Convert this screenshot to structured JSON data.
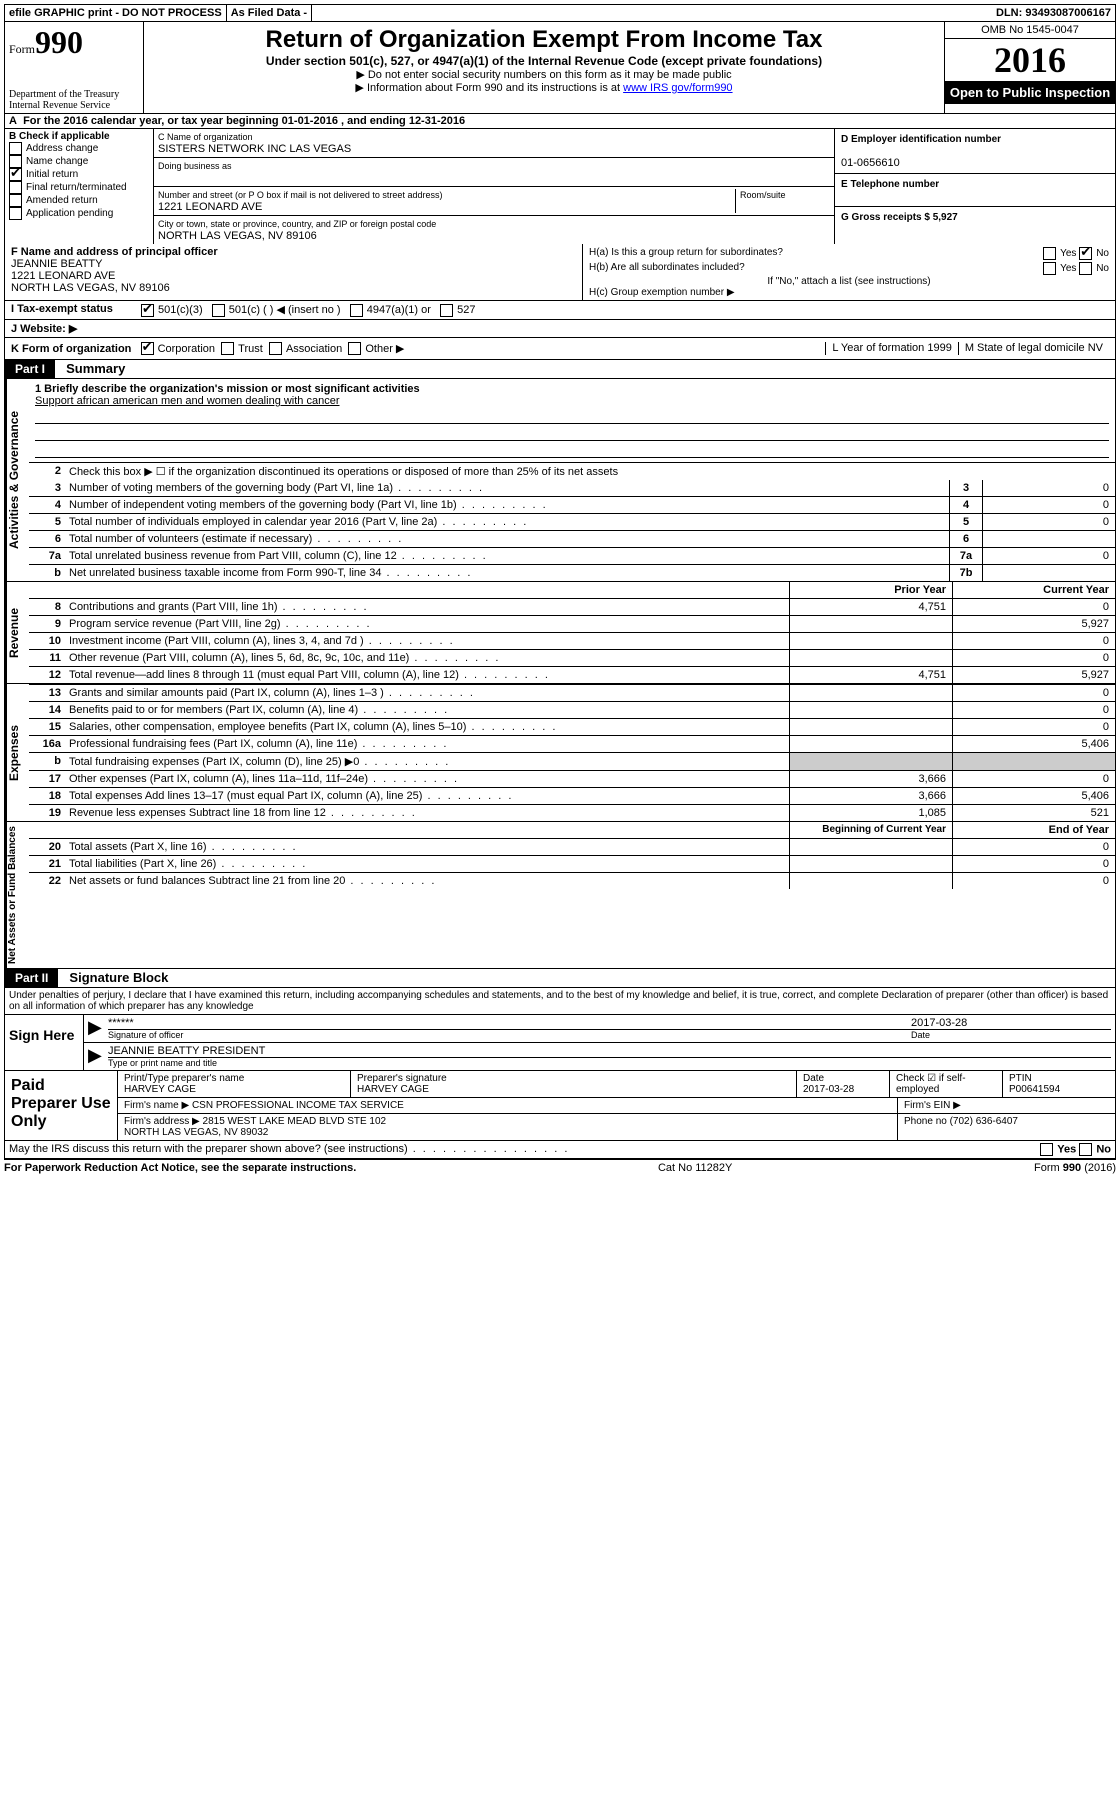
{
  "top": {
    "efile": "efile GRAPHIC print - DO NOT PROCESS",
    "asfiled": "As Filed Data -",
    "dln": "DLN: 93493087006167"
  },
  "header": {
    "form_word": "Form",
    "form_num": "990",
    "dept": "Department of the Treasury\nInternal Revenue Service",
    "title": "Return of Organization Exempt From Income Tax",
    "subtitle": "Under section 501(c), 527, or 4947(a)(1) of the Internal Revenue Code (except private foundations)",
    "instr1": "▶ Do not enter social security numbers on this form as it may be made public",
    "instr2": "▶ Information about Form 990 and its instructions is at ",
    "instr2_link": "www IRS gov/form990",
    "omb": "OMB No 1545-0047",
    "year": "2016",
    "open_pub": "Open to Public Inspection"
  },
  "A": "For the 2016 calendar year, or tax year beginning 01-01-2016   , and ending 12-31-2016",
  "B": {
    "label": "B Check if applicable",
    "items": [
      {
        "t": "Address change",
        "c": false
      },
      {
        "t": "Name change",
        "c": false
      },
      {
        "t": "Initial return",
        "c": true
      },
      {
        "t": "Final return/terminated",
        "c": false
      },
      {
        "t": "Amended return",
        "c": false
      },
      {
        "t": "Application pending",
        "c": false
      }
    ]
  },
  "C": {
    "name_lbl": "C Name of organization",
    "name": "SISTERS NETWORK INC LAS VEGAS",
    "dba_lbl": "Doing business as",
    "dba": "",
    "addr_lbl": "Number and street (or P O  box if mail is not delivered to street address)",
    "room_lbl": "Room/suite",
    "addr": "1221 LEONARD AVE",
    "city_lbl": "City or town, state or province, country, and ZIP or foreign postal code",
    "city": "NORTH LAS VEGAS, NV  89106"
  },
  "D": {
    "lbl": "D Employer identification number",
    "val": "01-0656610"
  },
  "E": {
    "lbl": "E Telephone number",
    "val": ""
  },
  "G": {
    "lbl": "G Gross receipts $ 5,927"
  },
  "F": {
    "lbl": "F  Name and address of principal officer",
    "name": "JEANNIE BEATTY",
    "addr1": "1221 LEONARD AVE",
    "addr2": "NORTH LAS VEGAS, NV  89106"
  },
  "H": {
    "a": "H(a)  Is this a group return for subordinates?",
    "a_yes": false,
    "a_no": true,
    "b": "H(b)  Are all subordinates included?",
    "b_yes": false,
    "b_no": false,
    "note": "If \"No,\" attach a list  (see instructions)",
    "c": "H(c)  Group exemption number ▶"
  },
  "I": {
    "lbl": "I   Tax-exempt status",
    "opts": [
      {
        "t": "501(c)(3)",
        "c": true
      },
      {
        "t": "501(c) (  ) ◀ (insert no )",
        "c": false
      },
      {
        "t": "4947(a)(1) or",
        "c": false
      },
      {
        "t": "527",
        "c": false
      }
    ]
  },
  "J": {
    "lbl": "J   Website: ▶",
    "val": ""
  },
  "K": {
    "lbl": "K Form of organization",
    "opts": [
      {
        "t": "Corporation",
        "c": true
      },
      {
        "t": "Trust",
        "c": false
      },
      {
        "t": "Association",
        "c": false
      },
      {
        "t": "Other ▶",
        "c": false
      }
    ],
    "L_lbl": "L Year of formation  1999",
    "M_lbl": "M State of legal domicile  NV"
  },
  "part1": {
    "hdr": "Part I",
    "title": "Summary",
    "mission_lbl": "1 Briefly describe the organization's mission or most significant activities",
    "mission": "Support african american men and women dealing with cancer",
    "line2": "Check this box ▶ ☐ if the organization discontinued its operations or disposed of more than 25% of its net assets",
    "sideA": "Activities & Governance",
    "sideR": "Revenue",
    "sideE": "Expenses",
    "sideN": "Net Assets or Fund Balances",
    "gov_lines": [
      {
        "n": "3",
        "d": "Number of voting members of the governing body (Part VI, line 1a)",
        "box": "3",
        "v": "0"
      },
      {
        "n": "4",
        "d": "Number of independent voting members of the governing body (Part VI, line 1b)",
        "box": "4",
        "v": "0"
      },
      {
        "n": "5",
        "d": "Total number of individuals employed in calendar year 2016 (Part V, line 2a)",
        "box": "5",
        "v": "0"
      },
      {
        "n": "6",
        "d": "Total number of volunteers (estimate if necessary)",
        "box": "6",
        "v": ""
      },
      {
        "n": "7a",
        "d": "Total unrelated business revenue from Part VIII, column (C), line 12",
        "box": "7a",
        "v": "0"
      },
      {
        "n": "b",
        "d": "Net unrelated business taxable income from Form 990-T, line 34",
        "box": "7b",
        "v": ""
      }
    ],
    "col_py": "Prior Year",
    "col_cy": "Current Year",
    "rev_lines": [
      {
        "n": "8",
        "d": "Contributions and grants (Part VIII, line 1h)",
        "py": "4,751",
        "cy": "0"
      },
      {
        "n": "9",
        "d": "Program service revenue (Part VIII, line 2g)",
        "py": "",
        "cy": "5,927"
      },
      {
        "n": "10",
        "d": "Investment income (Part VIII, column (A), lines 3, 4, and 7d )",
        "py": "",
        "cy": "0"
      },
      {
        "n": "11",
        "d": "Other revenue (Part VIII, column (A), lines 5, 6d, 8c, 9c, 10c, and 11e)",
        "py": "",
        "cy": "0"
      },
      {
        "n": "12",
        "d": "Total revenue—add lines 8 through 11 (must equal Part VIII, column (A), line 12)",
        "py": "4,751",
        "cy": "5,927"
      }
    ],
    "exp_lines": [
      {
        "n": "13",
        "d": "Grants and similar amounts paid (Part IX, column (A), lines 1–3 )",
        "py": "",
        "cy": "0"
      },
      {
        "n": "14",
        "d": "Benefits paid to or for members (Part IX, column (A), line 4)",
        "py": "",
        "cy": "0"
      },
      {
        "n": "15",
        "d": "Salaries, other compensation, employee benefits (Part IX, column (A), lines 5–10)",
        "py": "",
        "cy": "0"
      },
      {
        "n": "16a",
        "d": "Professional fundraising fees (Part IX, column (A), line 11e)",
        "py": "",
        "cy": "5,406"
      },
      {
        "n": "b",
        "d": "Total fundraising expenses (Part IX, column (D), line 25) ▶0",
        "py": "—",
        "cy": "—"
      },
      {
        "n": "17",
        "d": "Other expenses (Part IX, column (A), lines 11a–11d, 11f–24e)",
        "py": "3,666",
        "cy": "0"
      },
      {
        "n": "18",
        "d": "Total expenses  Add lines 13–17 (must equal Part IX, column (A), line 25)",
        "py": "3,666",
        "cy": "5,406"
      },
      {
        "n": "19",
        "d": "Revenue less expenses  Subtract line 18 from line 12",
        "py": "1,085",
        "cy": "521"
      }
    ],
    "col_boc": "Beginning of Current Year",
    "col_eoy": "End of Year",
    "net_lines": [
      {
        "n": "20",
        "d": "Total assets (Part X, line 16)",
        "py": "",
        "cy": "0"
      },
      {
        "n": "21",
        "d": "Total liabilities (Part X, line 26)",
        "py": "",
        "cy": "0"
      },
      {
        "n": "22",
        "d": "Net assets or fund balances  Subtract line 21 from line 20",
        "py": "",
        "cy": "0"
      }
    ]
  },
  "part2": {
    "hdr": "Part II",
    "title": "Signature Block",
    "perjury": "Under penalties of perjury, I declare that I have examined this return, including accompanying schedules and statements, and to the best of my knowledge and belief, it is true, correct, and complete  Declaration of preparer (other than officer) is based on all information of which preparer has any knowledge",
    "sign_here": "Sign Here",
    "stars": "******",
    "sig_officer": "Signature of officer",
    "date_lbl": "Date",
    "date": "2017-03-28",
    "name_title": "JEANNIE BEATTY PRESIDENT",
    "type_lbl": "Type or print name and title",
    "paid_hdr": "Paid Preparer Use Only",
    "prep_name_lbl": "Print/Type preparer's name",
    "prep_name": "HARVEY CAGE",
    "prep_sig_lbl": "Preparer's signature",
    "prep_sig": "HARVEY CAGE",
    "prep_date_lbl": "Date",
    "prep_date": "2017-03-28",
    "check_self": "Check ☑ if self-employed",
    "ptin_lbl": "PTIN",
    "ptin": "P00641594",
    "firm_name_lbl": "Firm's name    ▶",
    "firm_name": "CSN PROFESSIONAL INCOME TAX SERVICE",
    "firm_ein_lbl": "Firm's EIN ▶",
    "firm_addr_lbl": "Firm's address ▶",
    "firm_addr": "2815 WEST LAKE MEAD BLVD STE 102\nNORTH LAS VEGAS, NV  89032",
    "phone_lbl": "Phone no  (702) 636-6407",
    "discuss": "May the IRS discuss this return with the preparer shown above? (see instructions)",
    "yes": "Yes",
    "no": "No"
  },
  "footer": {
    "paperwork": "For Paperwork Reduction Act Notice, see the separate instructions.",
    "cat": "Cat  No  11282Y",
    "form": "Form 990 (2016)"
  }
}
